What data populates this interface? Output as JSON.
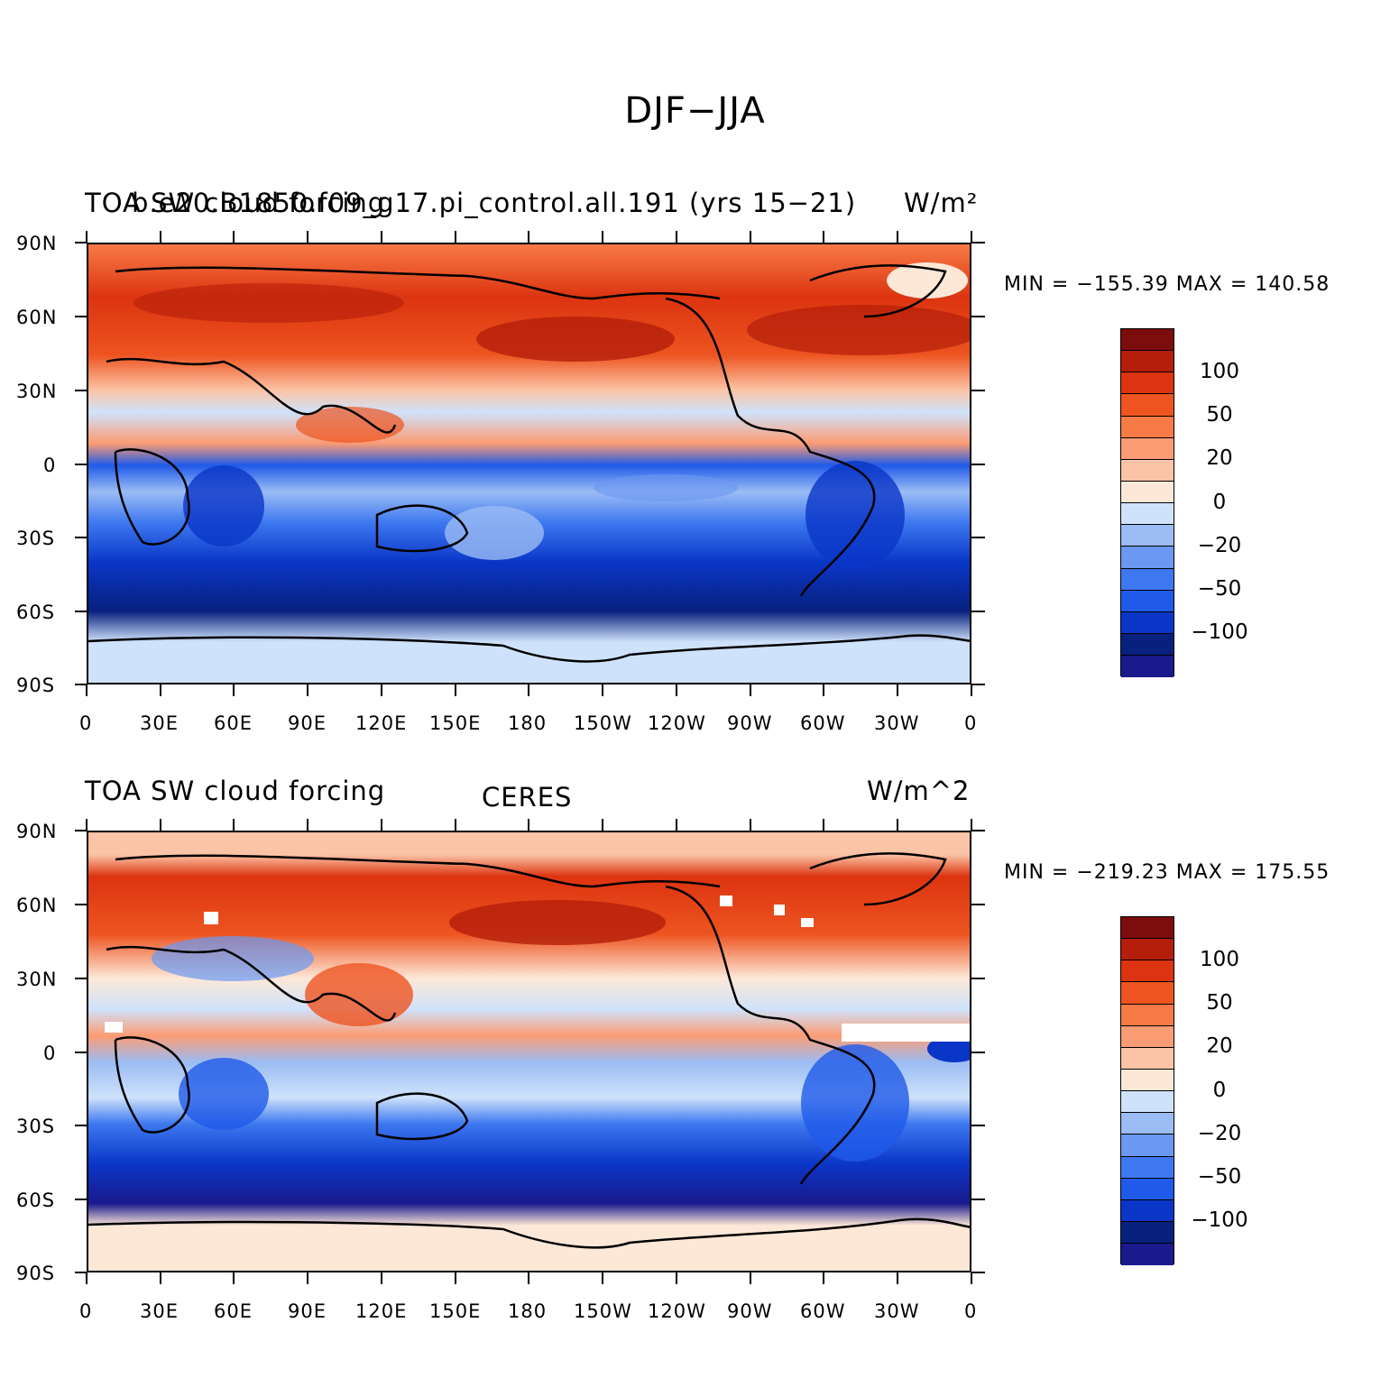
{
  "figure_title": "DJF−JJA",
  "colorbar_palette": [
    "#1a1a8c",
    "#08207e",
    "#0a36c7",
    "#1f5ae8",
    "#3d78f0",
    "#6a98f2",
    "#9bbcf4",
    "#cfe2fb",
    "#fde8d8",
    "#fcc4a6",
    "#fc9c74",
    "#f87a46",
    "#ed5420",
    "#dc3410",
    "#b41e0a",
    "#7d0c0c"
  ],
  "panels": [
    {
      "name": "model",
      "title_left": "TOA SW cloud forcing",
      "title_center": "b.e20.B1850.f09_g17.pi_control.all.191 (yrs 15−21)",
      "title_right": "W/m²",
      "stats": "MIN = −155.39  MAX = 140.58",
      "lat_labels": [
        "90N",
        "60N",
        "30N",
        "0",
        "30S",
        "60S",
        "90S"
      ],
      "lon_labels": [
        "0",
        "30E",
        "60E",
        "90E",
        "120E",
        "150E",
        "180",
        "150W",
        "120W",
        "90W",
        "60W",
        "30W",
        "0"
      ],
      "colorbar_labels": [
        "100",
        "50",
        "20",
        "0",
        "−20",
        "−50",
        "−100"
      ]
    },
    {
      "name": "obs",
      "title_left": "TOA SW cloud forcing",
      "title_center": "CERES",
      "title_right": "W/m^2",
      "stats": "MIN = −219.23  MAX = 175.55",
      "lat_labels": [
        "90N",
        "60N",
        "30N",
        "0",
        "30S",
        "60S",
        "90S"
      ],
      "lon_labels": [
        "0",
        "30E",
        "60E",
        "90E",
        "120E",
        "150E",
        "180",
        "150W",
        "120W",
        "90W",
        "60W",
        "30W",
        "0"
      ],
      "colorbar_labels": [
        "100",
        "50",
        "20",
        "0",
        "−20",
        "−50",
        "−100"
      ]
    }
  ]
}
